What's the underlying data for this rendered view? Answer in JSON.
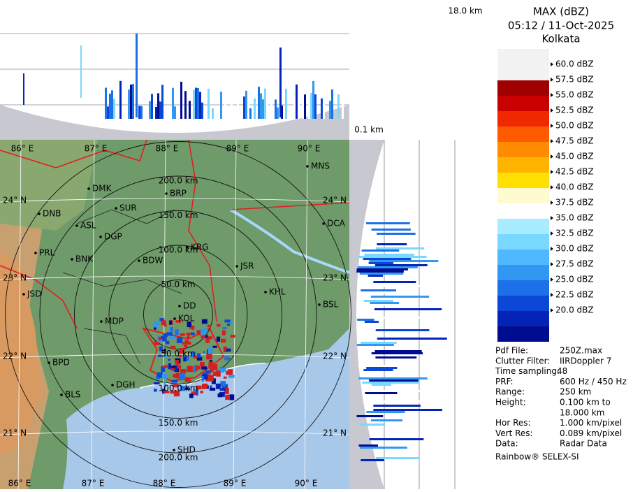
{
  "header": {
    "title": "MAX (dBZ)",
    "time": "05:12 / 11-Oct-2025",
    "station": "Kolkata"
  },
  "profile": {
    "top_height": "18.0 km",
    "bottom_height": "0.1 km"
  },
  "legend": {
    "labels": [
      "60.0 dBZ",
      "57.5 dBZ",
      "55.0 dBZ",
      "52.5 dBZ",
      "50.0 dBZ",
      "47.5 dBZ",
      "45.0 dBZ",
      "42.5 dBZ",
      "40.0 dBZ",
      "37.5 dBZ",
      "35.0 dBZ",
      "32.5 dBZ",
      "30.0 dBZ",
      "27.5 dBZ",
      "25.0 dBZ",
      "22.5 dBZ",
      "20.0 dBZ"
    ],
    "colors": [
      "#a00000",
      "#c80000",
      "#f02800",
      "#ff5a00",
      "#ff8c00",
      "#ffb400",
      "#ffe000",
      "#fffbd0",
      "#ffffff",
      "#a8ecff",
      "#78d8ff",
      "#50b8ff",
      "#3098f0",
      "#1c70e8",
      "#0c48d8",
      "#0424b8",
      "#000c90"
    ]
  },
  "info": {
    "rows": [
      [
        "Pdf File:",
        "250Z.max"
      ],
      [
        "Clutter Filter:",
        "IIRDoppler 7"
      ],
      [
        "Time sampling:",
        "48"
      ],
      [
        "PRF:",
        "600 Hz / 450 Hz"
      ],
      [
        "Range:",
        "250 km"
      ],
      [
        "Height:",
        "0.100 km to"
      ],
      [
        "",
        "18.000 km"
      ],
      [
        "Hor Res:",
        "1.000 km/pixel"
      ],
      [
        "Vert Res:",
        "0.089 km/pixel"
      ],
      [
        "Data:",
        "Radar Data"
      ]
    ],
    "footer": "Rainbow® SELEX-SI"
  },
  "map": {
    "lon_labels": [
      "86° E",
      "87° E",
      "88° E",
      "89° E",
      "90° E"
    ],
    "lat_labels": [
      "24° N",
      "23° N",
      "22° N",
      "21° N"
    ],
    "range_labels": [
      "50.0 km",
      "100.0 km",
      "150.0 km",
      "200.0 km"
    ],
    "cities": [
      "MNS",
      "DMK",
      "BRP",
      "SUR",
      "DNB",
      "ASL",
      "DCA",
      "DGP",
      "KRG",
      "PRL",
      "BNK",
      "BDW",
      "JSR",
      "KHL",
      "JSD",
      "DD",
      "BSL",
      "KOL",
      "MDP",
      "BPD",
      "DGH",
      "BLS",
      "SHD"
    ]
  }
}
